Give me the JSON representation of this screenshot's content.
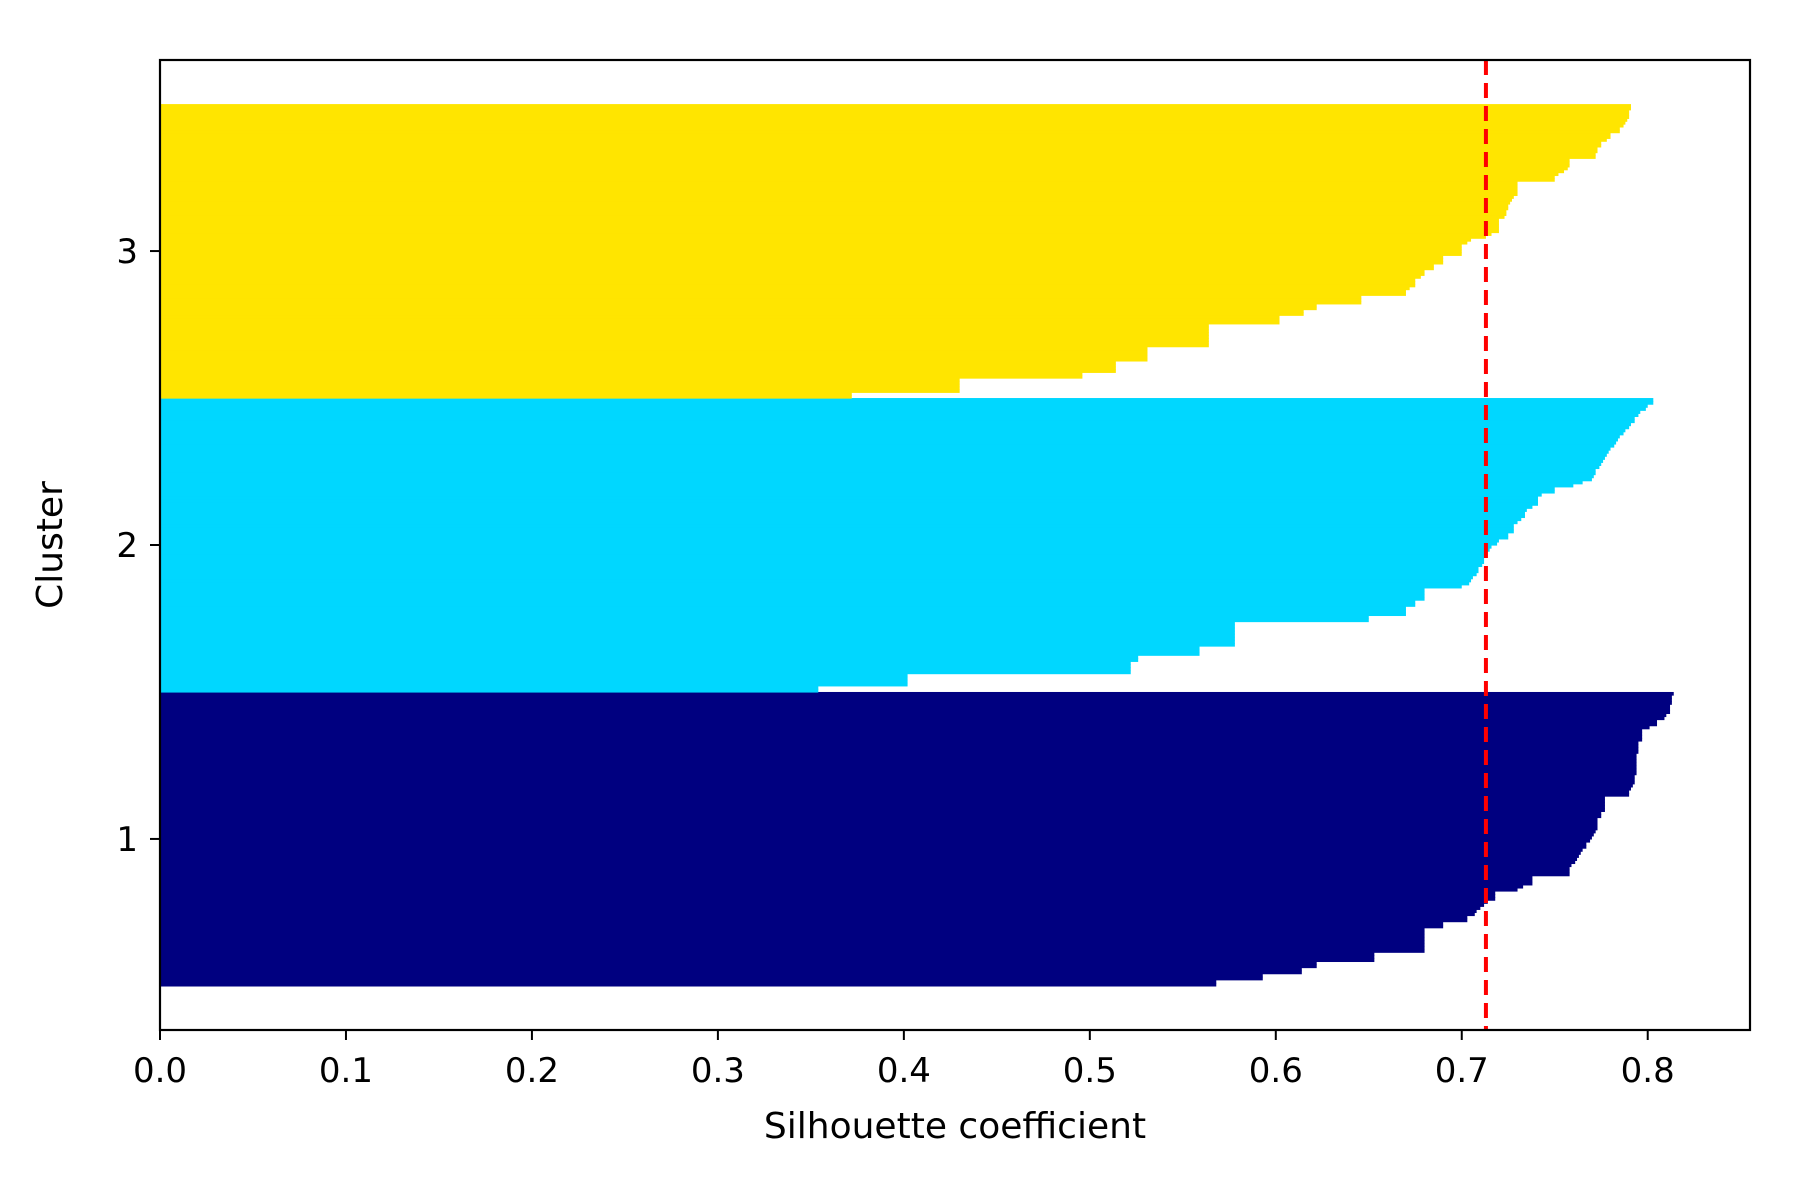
{
  "chart_data": {
    "type": "bar",
    "chart_kind": "silhouette plot (horizontal sorted bars per cluster)",
    "xlabel": "Silhouette coefficient",
    "ylabel": "Cluster",
    "xlim": [
      0.0,
      0.855
    ],
    "ylim": [
      0.35,
      3.65
    ],
    "xticks": [
      0.0,
      0.1,
      0.2,
      0.3,
      0.4,
      0.5,
      0.6,
      0.7,
      0.8
    ],
    "xtick_labels": [
      "0.0",
      "0.1",
      "0.2",
      "0.3",
      "0.4",
      "0.5",
      "0.6",
      "0.7",
      "0.8"
    ],
    "yticks": [
      1,
      2,
      3
    ],
    "ytick_labels": [
      "1",
      "2",
      "3"
    ],
    "grid": false,
    "legend": false,
    "average_line": {
      "value": 0.713,
      "color": "#ff0000",
      "style": "dashed"
    },
    "clusters": [
      {
        "label": "1",
        "color": "#000080",
        "band": [
          0.5,
          1.5
        ],
        "coefficients_sorted": [
          0.568,
          0.568,
          0.593,
          0.593,
          0.614,
          0.614,
          0.622,
          0.622,
          0.653,
          0.653,
          0.653,
          0.68,
          0.68,
          0.68,
          0.68,
          0.68,
          0.68,
          0.68,
          0.68,
          0.69,
          0.69,
          0.703,
          0.703,
          0.707,
          0.708,
          0.71,
          0.712,
          0.714,
          0.718,
          0.718,
          0.718,
          0.73,
          0.733,
          0.738,
          0.738,
          0.738,
          0.758,
          0.758,
          0.758,
          0.759,
          0.761,
          0.762,
          0.763,
          0.764,
          0.765,
          0.767,
          0.767,
          0.769,
          0.77,
          0.771,
          0.772,
          0.773,
          0.773,
          0.773,
          0.773,
          0.775,
          0.775,
          0.777,
          0.777,
          0.777,
          0.777,
          0.777,
          0.79,
          0.79,
          0.791,
          0.792,
          0.793,
          0.793,
          0.793,
          0.794,
          0.794,
          0.794,
          0.794,
          0.794,
          0.794,
          0.794,
          0.795,
          0.795,
          0.795,
          0.795,
          0.797,
          0.797,
          0.797,
          0.797,
          0.801,
          0.805,
          0.805,
          0.809,
          0.81,
          0.812,
          0.812,
          0.812,
          0.813,
          0.813,
          0.813,
          0.814
        ]
      },
      {
        "label": "2",
        "color": "#00d7ff",
        "band": [
          1.5,
          2.5
        ],
        "coefficients_sorted": [
          0.354,
          0.354,
          0.402,
          0.402,
          0.402,
          0.402,
          0.522,
          0.522,
          0.522,
          0.522,
          0.526,
          0.526,
          0.559,
          0.559,
          0.559,
          0.578,
          0.578,
          0.578,
          0.578,
          0.578,
          0.578,
          0.578,
          0.578,
          0.65,
          0.65,
          0.67,
          0.67,
          0.67,
          0.675,
          0.675,
          0.68,
          0.68,
          0.68,
          0.68,
          0.7,
          0.704,
          0.705,
          0.706,
          0.708,
          0.709,
          0.709,
          0.711,
          0.712,
          0.712,
          0.713,
          0.713,
          0.715,
          0.716,
          0.719,
          0.72,
          0.725,
          0.725,
          0.728,
          0.728,
          0.728,
          0.73,
          0.732,
          0.734,
          0.734,
          0.735,
          0.738,
          0.741,
          0.741,
          0.741,
          0.743,
          0.75,
          0.75,
          0.76,
          0.765,
          0.77,
          0.771,
          0.772,
          0.772,
          0.774,
          0.775,
          0.776,
          0.777,
          0.778,
          0.779,
          0.78,
          0.782,
          0.783,
          0.784,
          0.785,
          0.787,
          0.788,
          0.79,
          0.791,
          0.793,
          0.793,
          0.795,
          0.796,
          0.799,
          0.8,
          0.803,
          0.803
        ]
      },
      {
        "label": "3",
        "color": "#ffe500",
        "band": [
          2.5,
          3.5
        ],
        "coefficients_sorted": [
          0.372,
          0.372,
          0.43,
          0.43,
          0.43,
          0.43,
          0.43,
          0.496,
          0.496,
          0.514,
          0.514,
          0.514,
          0.514,
          0.531,
          0.531,
          0.531,
          0.531,
          0.531,
          0.564,
          0.564,
          0.564,
          0.564,
          0.564,
          0.564,
          0.564,
          0.564,
          0.602,
          0.602,
          0.602,
          0.615,
          0.615,
          0.622,
          0.622,
          0.646,
          0.646,
          0.646,
          0.67,
          0.67,
          0.672,
          0.675,
          0.675,
          0.675,
          0.678,
          0.68,
          0.68,
          0.685,
          0.685,
          0.69,
          0.69,
          0.69,
          0.7,
          0.7,
          0.7,
          0.7,
          0.703,
          0.705,
          0.713,
          0.716,
          0.72,
          0.72,
          0.72,
          0.72,
          0.72,
          0.723,
          0.724,
          0.724,
          0.725,
          0.725,
          0.726,
          0.727,
          0.728,
          0.73,
          0.73,
          0.73,
          0.73,
          0.73,
          0.75,
          0.75,
          0.752,
          0.755,
          0.757,
          0.758,
          0.758,
          0.758,
          0.772,
          0.772,
          0.773,
          0.773,
          0.775,
          0.775,
          0.778,
          0.78,
          0.78,
          0.785,
          0.785,
          0.787,
          0.788,
          0.789,
          0.79,
          0.79,
          0.79,
          0.791,
          0.791
        ]
      }
    ]
  }
}
